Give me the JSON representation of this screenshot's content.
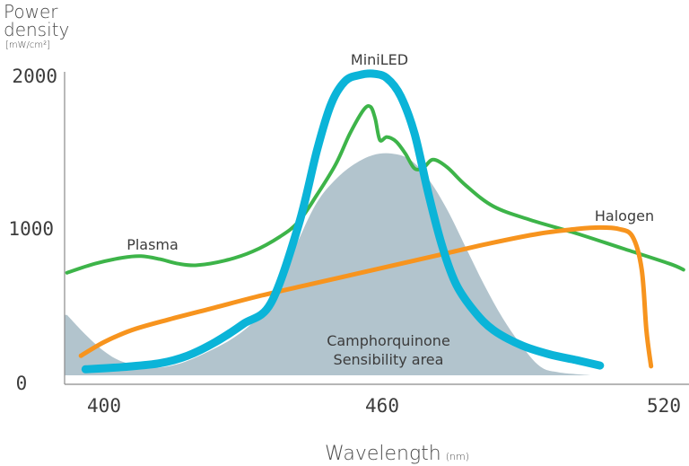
{
  "chart_data": {
    "type": "line",
    "ylabel": "Power density",
    "ylabel_unit": "[mW/cm²]",
    "xlabel": "Wavelength",
    "xlabel_unit": "(nm)",
    "xlim": [
      392,
      525
    ],
    "ylim": [
      0,
      2000
    ],
    "x_ticks": [
      400,
      460,
      520
    ],
    "y_ticks": [
      0,
      1000,
      2000
    ],
    "grid": false,
    "area": {
      "name": "Camphorquinone Sensibility area",
      "label_line1": "Camphorquinone",
      "label_line2": "Sensibility area",
      "color": "#b2c4cd",
      "points": [
        [
          392,
          400
        ],
        [
          396,
          270
        ],
        [
          400,
          160
        ],
        [
          404,
          90
        ],
        [
          410,
          50
        ],
        [
          416,
          75
        ],
        [
          422,
          150
        ],
        [
          428,
          250
        ],
        [
          433,
          380
        ],
        [
          438,
          600
        ],
        [
          442,
          900
        ],
        [
          446,
          1150
        ],
        [
          450,
          1300
        ],
        [
          454,
          1400
        ],
        [
          458,
          1460
        ],
        [
          462,
          1470
        ],
        [
          466,
          1430
        ],
        [
          470,
          1300
        ],
        [
          474,
          1100
        ],
        [
          478,
          850
        ],
        [
          482,
          600
        ],
        [
          486,
          380
        ],
        [
          490,
          200
        ],
        [
          494,
          60
        ],
        [
          498,
          20
        ],
        [
          505,
          0
        ]
      ]
    },
    "series": [
      {
        "name": "MiniLED",
        "color": "#0bb4d8",
        "width": 9,
        "points": [
          [
            396,
            40
          ],
          [
            404,
            55
          ],
          [
            412,
            80
          ],
          [
            418,
            130
          ],
          [
            424,
            220
          ],
          [
            430,
            340
          ],
          [
            436,
            480
          ],
          [
            442,
            1000
          ],
          [
            446,
            1500
          ],
          [
            449,
            1800
          ],
          [
            452,
            1950
          ],
          [
            455,
            1990
          ],
          [
            458,
            2000
          ],
          [
            461,
            1970
          ],
          [
            464,
            1850
          ],
          [
            467,
            1600
          ],
          [
            470,
            1200
          ],
          [
            473,
            850
          ],
          [
            476,
            600
          ],
          [
            480,
            420
          ],
          [
            484,
            300
          ],
          [
            490,
            200
          ],
          [
            496,
            140
          ],
          [
            502,
            100
          ],
          [
            507,
            65
          ]
        ]
      },
      {
        "name": "Plasma",
        "color": "#3db449",
        "width": 4,
        "points": [
          [
            392,
            680
          ],
          [
            398,
            740
          ],
          [
            404,
            780
          ],
          [
            408,
            790
          ],
          [
            412,
            770
          ],
          [
            416,
            740
          ],
          [
            420,
            730
          ],
          [
            426,
            760
          ],
          [
            432,
            820
          ],
          [
            438,
            920
          ],
          [
            442,
            1020
          ],
          [
            446,
            1200
          ],
          [
            450,
            1400
          ],
          [
            453,
            1600
          ],
          [
            456,
            1760
          ],
          [
            457.5,
            1780
          ],
          [
            458.5,
            1700
          ],
          [
            459.5,
            1560
          ],
          [
            461,
            1580
          ],
          [
            463,
            1550
          ],
          [
            465,
            1470
          ],
          [
            467,
            1370
          ],
          [
            469,
            1380
          ],
          [
            471,
            1430
          ],
          [
            474,
            1380
          ],
          [
            478,
            1260
          ],
          [
            484,
            1120
          ],
          [
            492,
            1030
          ],
          [
            502,
            940
          ],
          [
            512,
            840
          ],
          [
            522,
            740
          ],
          [
            525,
            700
          ]
        ]
      },
      {
        "name": "Halogen",
        "color": "#f7941e",
        "width": 5,
        "points": [
          [
            395,
            130
          ],
          [
            400,
            220
          ],
          [
            406,
            300
          ],
          [
            414,
            370
          ],
          [
            424,
            450
          ],
          [
            434,
            530
          ],
          [
            444,
            600
          ],
          [
            454,
            670
          ],
          [
            464,
            740
          ],
          [
            474,
            810
          ],
          [
            484,
            880
          ],
          [
            494,
            940
          ],
          [
            502,
            970
          ],
          [
            507,
            980
          ],
          [
            511,
            970
          ],
          [
            514,
            920
          ],
          [
            516,
            700
          ],
          [
            517,
            300
          ],
          [
            518,
            60
          ]
        ]
      }
    ]
  }
}
